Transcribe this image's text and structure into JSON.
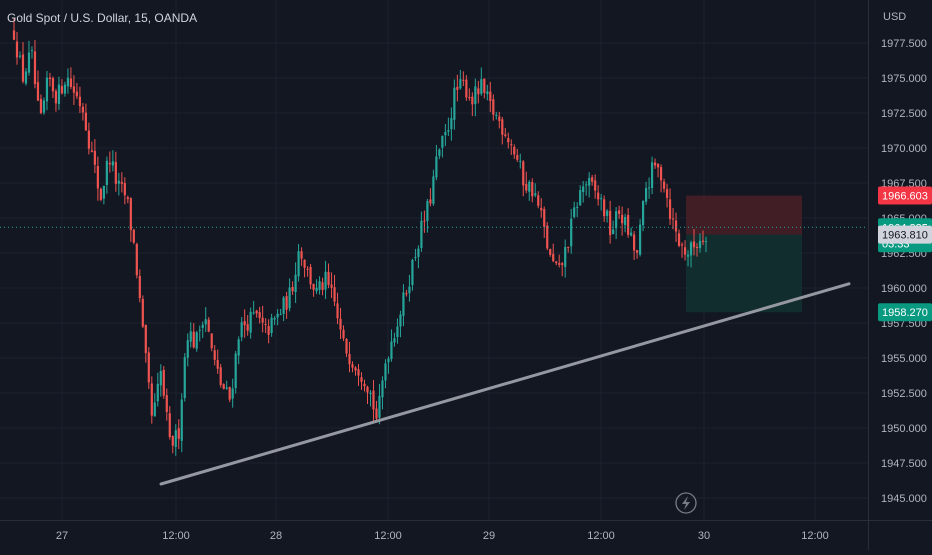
{
  "header": {
    "symbol_title": "Gold Spot / U.S. Dollar, 15, OANDA"
  },
  "colors": {
    "background": "#131722",
    "grid": "#1e222d",
    "up_candle": "#26a69a",
    "down_candle": "#ef5350",
    "trendline": "#9598a1",
    "stop_zone": "#4a1f27",
    "target_zone": "#13312f",
    "axis_text": "#b2b5be"
  },
  "price_axis": {
    "currency": "USD",
    "ticks": [
      "1977.500",
      "1975.000",
      "1972.500",
      "1970.000",
      "1967.500",
      "1965.000",
      "1962.500",
      "1960.000",
      "1957.500",
      "1955.000",
      "1952.500",
      "1950.000",
      "1947.500",
      "1945.000"
    ],
    "labels": {
      "stop": {
        "text": "1966.603",
        "color": "#f23645"
      },
      "current": {
        "text": "1964.335",
        "countdown": "03:33",
        "color": "#089981"
      },
      "entry": {
        "text": "1963.810",
        "color": "#2a2e39"
      },
      "target": {
        "text": "1958.270",
        "color": "#089981"
      }
    }
  },
  "time_axis": {
    "labels": [
      "27",
      "12:00",
      "28",
      "12:00",
      "29",
      "12:00",
      "30",
      "12:00"
    ]
  },
  "chart_data": {
    "type": "candlestick",
    "title": "Gold Spot / U.S. Dollar, 15, OANDA",
    "ylabel": "USD",
    "ylim": [
      1944.0,
      1979.2
    ],
    "x_labels": [
      "27",
      "12:00",
      "28",
      "12:00",
      "29",
      "12:00",
      "30",
      "12:00"
    ],
    "close_path": [
      [
        0,
        1978.3
      ],
      [
        1,
        1975.0
      ],
      [
        2,
        1976.8
      ],
      [
        3,
        1971.5
      ],
      [
        4,
        1975.0
      ],
      [
        5,
        1973.6
      ],
      [
        6,
        1975.2
      ],
      [
        7,
        1974.0
      ],
      [
        8,
        1972.8
      ],
      [
        9,
        1969.5
      ],
      [
        10,
        1966.4
      ],
      [
        11,
        1969.5
      ],
      [
        12,
        1967.2
      ],
      [
        13,
        1966.5
      ],
      [
        14,
        1962.5
      ],
      [
        15,
        1956.0
      ],
      [
        16,
        1950.4
      ],
      [
        17,
        1954.0
      ],
      [
        18,
        1948.8
      ],
      [
        19,
        1949.5
      ],
      [
        20,
        1957.0
      ],
      [
        21,
        1956.0
      ],
      [
        22,
        1958.5
      ],
      [
        23,
        1955.0
      ],
      [
        24,
        1953.0
      ],
      [
        25,
        1952.0
      ],
      [
        26,
        1957.0
      ],
      [
        27,
        1957.6
      ],
      [
        28,
        1958.0
      ],
      [
        29,
        1956.8
      ],
      [
        30,
        1957.5
      ],
      [
        31,
        1958.5
      ],
      [
        32,
        1959.6
      ],
      [
        33,
        1963.0
      ],
      [
        34,
        1961.0
      ],
      [
        35,
        1959.6
      ],
      [
        36,
        1960.5
      ],
      [
        37,
        1959.0
      ],
      [
        38,
        1956.0
      ],
      [
        39,
        1955.0
      ],
      [
        40,
        1954.2
      ],
      [
        41,
        1953.0
      ],
      [
        42,
        1950.5
      ],
      [
        43,
        1955.0
      ],
      [
        44,
        1957.0
      ],
      [
        45,
        1959.0
      ],
      [
        46,
        1961.5
      ],
      [
        47,
        1964.0
      ],
      [
        48,
        1966.0
      ],
      [
        49,
        1969.5
      ],
      [
        50,
        1971.0
      ],
      [
        51,
        1974.0
      ],
      [
        52,
        1974.5
      ],
      [
        53,
        1973.5
      ],
      [
        54,
        1974.3
      ],
      [
        55,
        1973.0
      ],
      [
        56,
        1972.0
      ],
      [
        57,
        1971.0
      ],
      [
        58,
        1969.5
      ],
      [
        59,
        1967.5
      ],
      [
        60,
        1967.0
      ],
      [
        61,
        1965.0
      ],
      [
        62,
        1962.0
      ],
      [
        63,
        1961.0
      ],
      [
        64,
        1963.2
      ],
      [
        65,
        1966.0
      ],
      [
        66,
        1967.6
      ],
      [
        67,
        1967.0
      ],
      [
        68,
        1966.0
      ],
      [
        69,
        1964.0
      ],
      [
        70,
        1965.5
      ],
      [
        71,
        1964.0
      ],
      [
        72,
        1962.2
      ],
      [
        73,
        1967.0
      ],
      [
        74,
        1968.7
      ],
      [
        75,
        1968.0
      ],
      [
        76,
        1965.0
      ],
      [
        77,
        1963.0
      ],
      [
        78,
        1962.5
      ],
      [
        79,
        1963.3
      ],
      [
        80,
        1964.0
      ]
    ],
    "trendline": {
      "start": [
        16,
        1946.0
      ],
      "end": [
        93,
        1960.3
      ]
    },
    "position_tool": {
      "stop": 1966.603,
      "entry": 1963.81,
      "target": 1958.27,
      "x_range": [
        80,
        94
      ]
    },
    "last_price": 1964.335
  }
}
